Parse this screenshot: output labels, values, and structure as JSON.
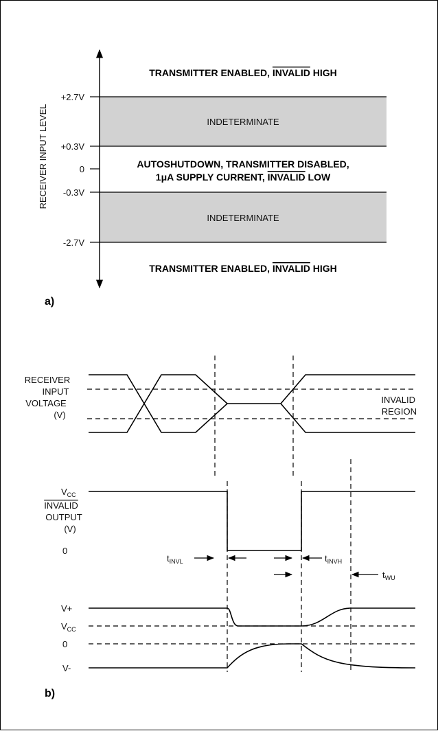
{
  "panel_a": {
    "label": "a)",
    "axis_label": "RECEIVER INPUT LEVEL",
    "levels": [
      "+2.7V",
      "+0.3V",
      "0",
      "-0.3V",
      "-2.7V"
    ],
    "regions": {
      "top": [
        "TRANSMITTER ENABLED, ",
        "INVALID",
        " HIGH"
      ],
      "indeterminate_upper": "INDETERMINATE",
      "middle_line1": "AUTOSHUTDOWN, TRANSMITTER DISABLED,",
      "middle_line2": [
        "1μA SUPPLY CURRENT, ",
        "INVALID",
        " LOW"
      ],
      "indeterminate_lower": "INDETERMINATE",
      "bottom": [
        "TRANSMITTER ENABLED, ",
        "INVALID",
        " HIGH"
      ]
    },
    "colors": {
      "indeterminate_fill": "#d2d2d2"
    }
  },
  "panel_b": {
    "label": "b)",
    "receiver_input": [
      "RECEIVER",
      "INPUT",
      "VOLTAGE",
      "(V)"
    ],
    "invalid_region": [
      "INVALID",
      "REGION"
    ],
    "invalid_output": {
      "vcc": [
        "V",
        "CC"
      ],
      "label": [
        "INVALID",
        "OUTPUT",
        "(V)"
      ],
      "zero": "0"
    },
    "timing": {
      "t_invl": [
        "t",
        "INVL"
      ],
      "t_invh": [
        "t",
        "INVH"
      ],
      "t_wu": [
        "t",
        "WU"
      ]
    },
    "supply": {
      "vplus": "V+",
      "vcc": [
        "V",
        "CC"
      ],
      "zero": "0",
      "vminus": "V-"
    }
  }
}
